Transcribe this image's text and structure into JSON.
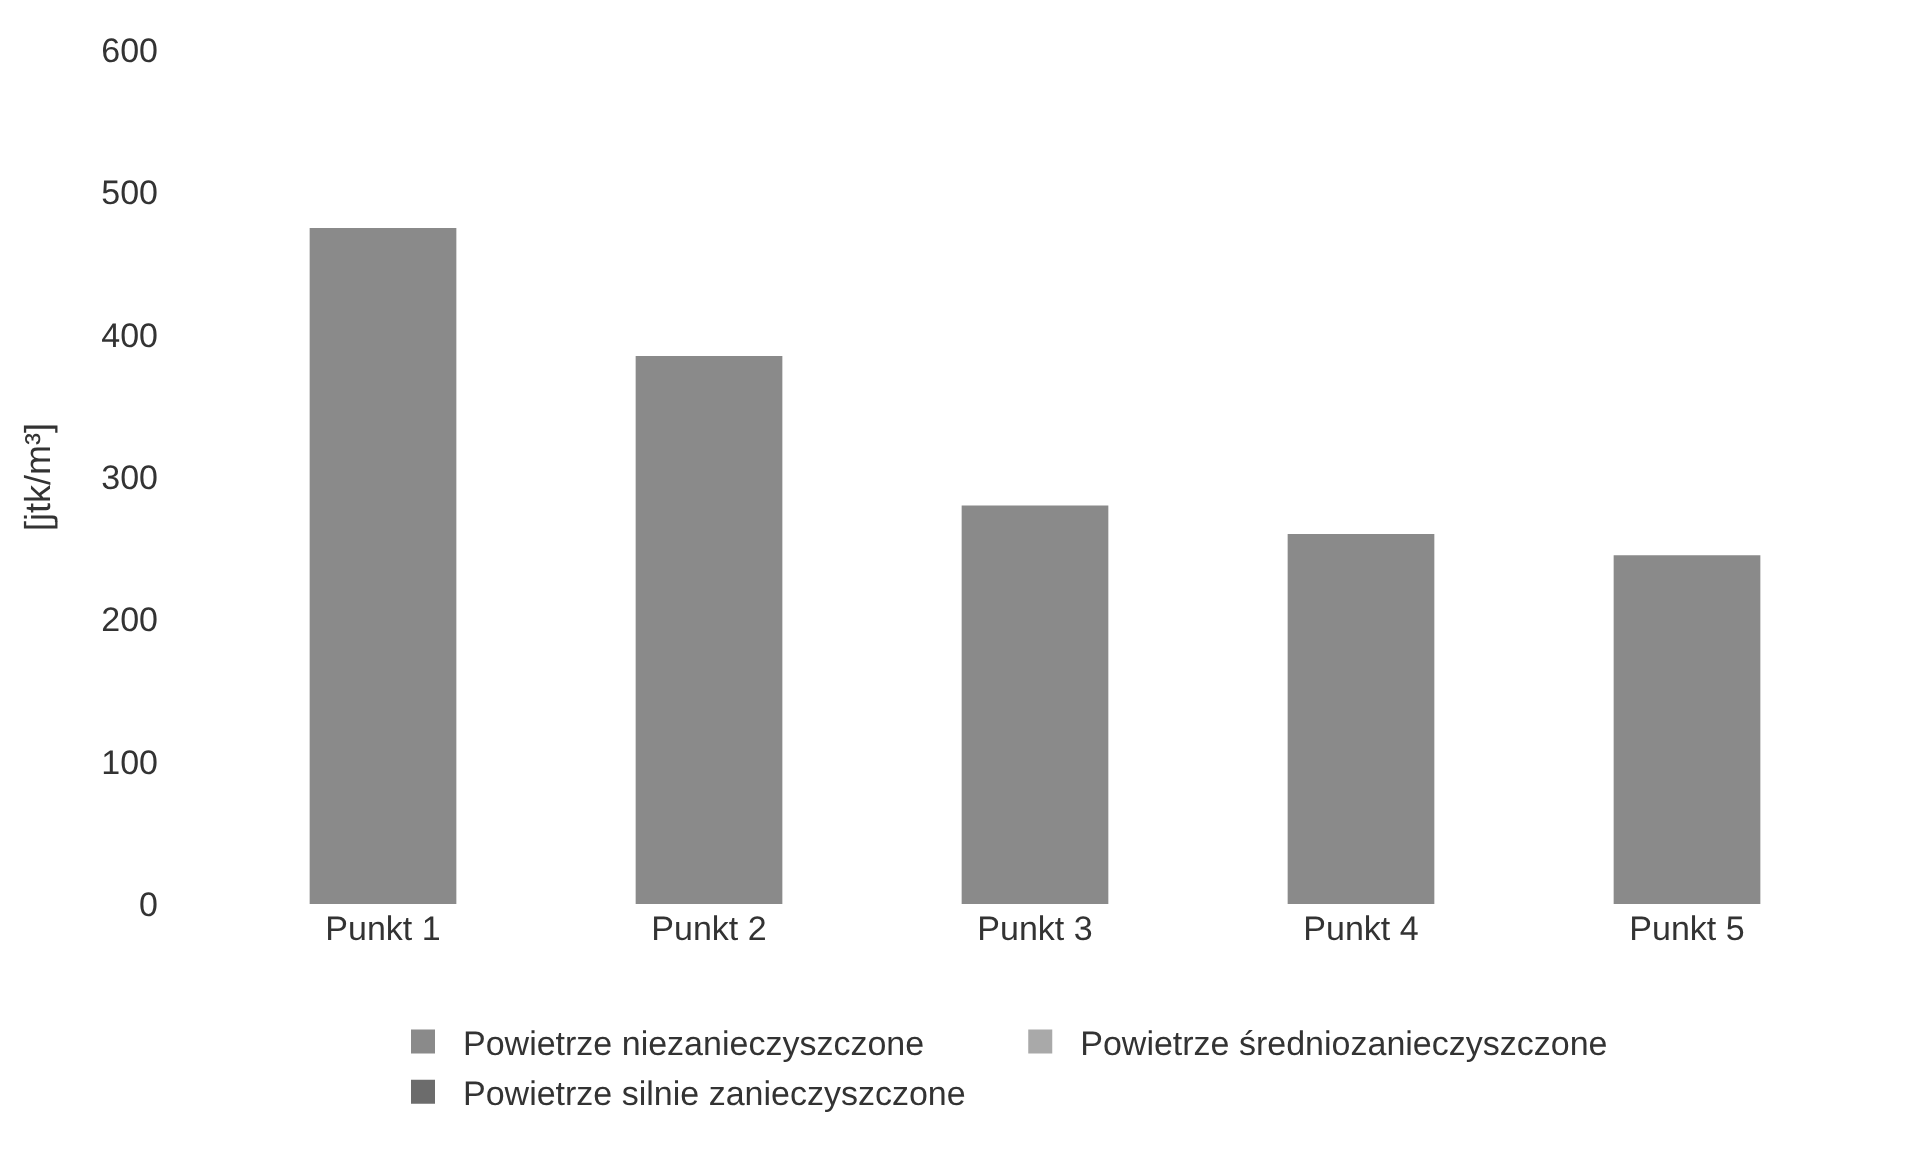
{
  "chart_data": {
    "type": "bar",
    "ylabel": "[jtk/m³]",
    "categories": [
      "Punkt 1",
      "Punkt 2",
      "Punkt 3",
      "Punkt 4",
      "Punkt 5"
    ],
    "series": [
      {
        "name": "Powietrze niezanieczyszczone",
        "color": "#8a8a8a",
        "values": [
          475,
          385,
          280,
          260,
          245
        ]
      },
      {
        "name": "Powietrze średniozanieczyszczone",
        "color": "#a9a9a9",
        "values": [
          null,
          null,
          null,
          null,
          null
        ]
      },
      {
        "name": "Powietrze silnie zanieczyszczone",
        "color": "#6c6c6c",
        "values": [
          null,
          null,
          null,
          null,
          null
        ]
      }
    ],
    "ylim": [
      0,
      600
    ],
    "yticks": [
      0,
      100,
      200,
      300,
      400,
      500,
      600
    ],
    "grid": false,
    "legend": "bottom"
  }
}
